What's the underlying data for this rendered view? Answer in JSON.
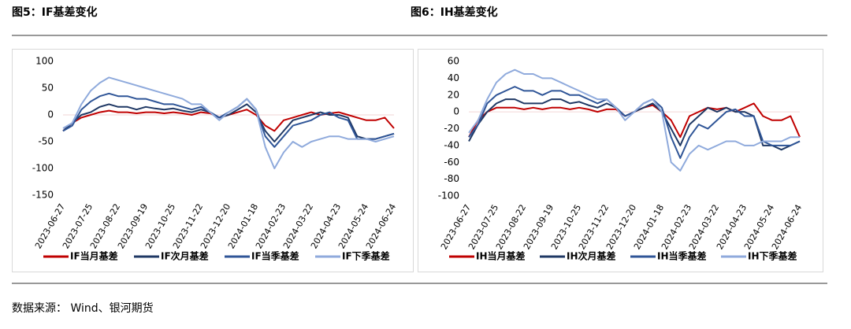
{
  "source": "数据来源： Wind、银河期货",
  "chart_data": [
    {
      "type": "line",
      "title": "图5：IF基差变化",
      "categories": [
        "2023-06-27",
        null,
        null,
        "2023-07-25",
        null,
        null,
        "2023-08-22",
        null,
        null,
        "2023-09-19",
        null,
        null,
        "2023-10-25",
        null,
        null,
        "2023-11-22",
        null,
        null,
        "2023-12-20",
        null,
        null,
        "2024-01-18",
        null,
        null,
        "2024-02-23",
        null,
        null,
        "2024-03-22",
        null,
        null,
        "2024-04-23",
        null,
        null,
        "2024-05-24",
        null,
        null,
        "2024-06-24"
      ],
      "ylim": [
        -150,
        100
      ],
      "yticks": [
        -150,
        -100,
        -50,
        0,
        50,
        100
      ],
      "series": [
        {
          "name": "IF当月基差",
          "color": "#c00000",
          "values": [
            -30,
            -15,
            -5,
            0,
            5,
            8,
            5,
            5,
            3,
            5,
            5,
            3,
            5,
            3,
            0,
            5,
            3,
            -5,
            0,
            5,
            10,
            0,
            -20,
            -30,
            -10,
            -5,
            0,
            5,
            0,
            3,
            5,
            0,
            -5,
            -10,
            -10,
            -5,
            -25
          ]
        },
        {
          "name": "IF次月基差",
          "color": "#1f3864",
          "values": [
            -30,
            -15,
            0,
            5,
            15,
            20,
            15,
            15,
            10,
            15,
            12,
            10,
            12,
            8,
            5,
            10,
            5,
            -5,
            0,
            10,
            20,
            5,
            -30,
            -50,
            -30,
            -10,
            -5,
            0,
            5,
            0,
            0,
            -5,
            -40,
            -45,
            -45,
            -40,
            -35
          ]
        },
        {
          "name": "IF当季基差",
          "color": "#2f5597",
          "values": [
            -30,
            -20,
            10,
            25,
            35,
            40,
            35,
            35,
            30,
            30,
            25,
            20,
            20,
            15,
            10,
            15,
            5,
            -5,
            5,
            15,
            30,
            10,
            -40,
            -60,
            -40,
            -20,
            -15,
            -10,
            0,
            5,
            -5,
            -10,
            -45,
            -45,
            -45,
            -40,
            -35
          ]
        },
        {
          "name": "IF下季基差",
          "color": "#8faadc",
          "values": [
            -25,
            -15,
            20,
            45,
            60,
            70,
            65,
            60,
            55,
            50,
            45,
            40,
            35,
            30,
            20,
            20,
            5,
            -10,
            5,
            15,
            30,
            10,
            -60,
            -100,
            -70,
            -50,
            -60,
            -50,
            -45,
            -40,
            -40,
            -45,
            -45,
            -45,
            -50,
            -45,
            -40
          ]
        }
      ]
    },
    {
      "type": "line",
      "title": "图6：IH基差变化",
      "categories": [
        "2023-06-27",
        null,
        null,
        "2023-07-25",
        null,
        null,
        "2023-08-22",
        null,
        null,
        "2023-09-19",
        null,
        null,
        "2023-10-25",
        null,
        null,
        "2023-11-22",
        null,
        null,
        "2023-12-20",
        null,
        null,
        "2024-01-18",
        null,
        null,
        "2024-02-23",
        null,
        null,
        "2024-03-22",
        null,
        null,
        "2024-04-23",
        null,
        null,
        "2024-05-24",
        null,
        null,
        "2024-06-24"
      ],
      "ylim": [
        -100,
        60
      ],
      "yticks": [
        -100,
        -80,
        -60,
        -40,
        -20,
        0,
        20,
        40,
        60
      ],
      "series": [
        {
          "name": "IH当月基差",
          "color": "#c00000",
          "values": [
            -30,
            -10,
            0,
            5,
            5,
            5,
            3,
            5,
            3,
            5,
            5,
            3,
            5,
            3,
            0,
            3,
            3,
            -5,
            0,
            5,
            8,
            0,
            -10,
            -30,
            -5,
            0,
            5,
            3,
            5,
            0,
            5,
            10,
            -5,
            -10,
            -10,
            -5,
            -30
          ]
        },
        {
          "name": "IH次月基差",
          "color": "#1f3864",
          "values": [
            -35,
            -15,
            0,
            10,
            15,
            15,
            10,
            10,
            10,
            15,
            15,
            10,
            12,
            8,
            5,
            10,
            5,
            -5,
            0,
            5,
            10,
            0,
            -20,
            -40,
            -15,
            -5,
            5,
            0,
            5,
            0,
            0,
            -5,
            -40,
            -40,
            -45,
            -40,
            -35
          ]
        },
        {
          "name": "IH当季基差",
          "color": "#2f5597",
          "values": [
            -30,
            -15,
            10,
            20,
            25,
            30,
            25,
            25,
            20,
            25,
            25,
            20,
            20,
            15,
            10,
            15,
            5,
            -5,
            0,
            10,
            15,
            5,
            -30,
            -55,
            -30,
            -15,
            -20,
            -10,
            0,
            3,
            -5,
            -5,
            -35,
            -40,
            -40,
            -40,
            -35
          ]
        },
        {
          "name": "IH下季基差",
          "color": "#8faadc",
          "values": [
            -25,
            -10,
            15,
            35,
            45,
            50,
            45,
            45,
            40,
            40,
            35,
            30,
            25,
            20,
            15,
            15,
            5,
            -10,
            0,
            10,
            15,
            0,
            -60,
            -70,
            -50,
            -40,
            -45,
            -40,
            -35,
            -35,
            -40,
            -40,
            -35,
            -35,
            -35,
            -30,
            -30
          ]
        }
      ]
    }
  ]
}
